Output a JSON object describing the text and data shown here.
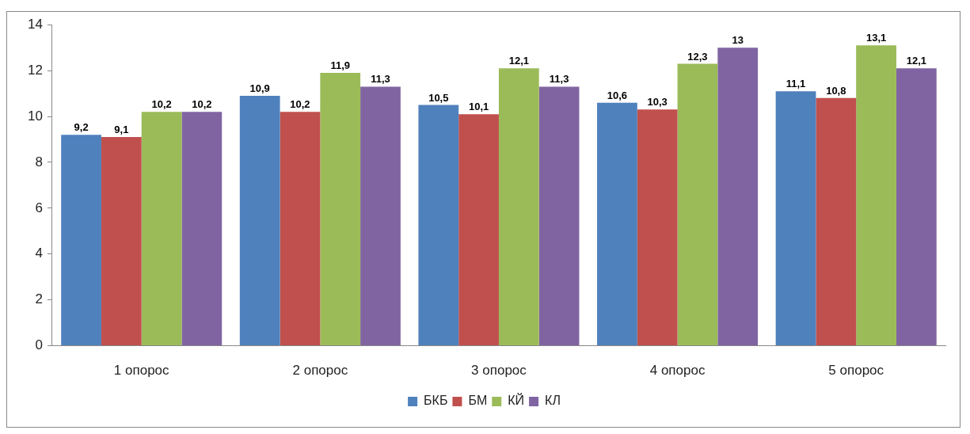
{
  "chart_data": {
    "type": "bar",
    "categories": [
      "1 опорос",
      "2 опорос",
      "3 опорос",
      "4 опорос",
      "5 опорос"
    ],
    "series": [
      {
        "name": "БКБ",
        "color": "#4f81bd",
        "values": [
          9.2,
          10.9,
          10.5,
          10.6,
          11.1
        ],
        "value_labels": [
          "9,2",
          "10,9",
          "10,5",
          "10,6",
          "11,1"
        ]
      },
      {
        "name": "БМ",
        "color": "#c0504d",
        "values": [
          9.1,
          10.2,
          10.1,
          10.3,
          10.8
        ],
        "value_labels": [
          "9,1",
          "10,2",
          "10,1",
          "10,3",
          "10,8"
        ]
      },
      {
        "name": "КЙ",
        "color": "#9bbb59",
        "values": [
          10.2,
          11.9,
          12.1,
          12.3,
          13.1
        ],
        "value_labels": [
          "10,2",
          "11,9",
          "12,1",
          "12,3",
          "13,1"
        ]
      },
      {
        "name": "КЛ",
        "color": "#8064a2",
        "values": [
          10.2,
          11.3,
          11.3,
          13,
          12.1
        ],
        "value_labels": [
          "10,2",
          "11,3",
          "11,3",
          "13",
          "12,1"
        ]
      }
    ],
    "ylim": [
      0,
      14
    ],
    "yticks": [
      0,
      2,
      4,
      6,
      8,
      10,
      12,
      14
    ],
    "grid": false,
    "legend": "bottom"
  }
}
